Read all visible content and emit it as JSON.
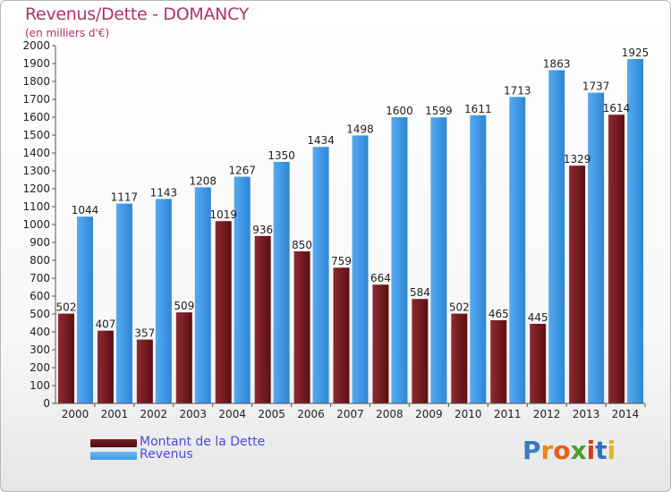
{
  "chart_data": {
    "type": "bar",
    "title": "Revenus/Dette - DOMANCY",
    "subtitle": "(en milliers d'€)",
    "categories": [
      "2000",
      "2001",
      "2002",
      "2003",
      "2004",
      "2005",
      "2006",
      "2007",
      "2008",
      "2009",
      "2010",
      "2011",
      "2012",
      "2013",
      "2014"
    ],
    "series": [
      {
        "name": "Montant de la Dette",
        "color": "#7a1f24",
        "values": [
          502,
          407,
          357,
          509,
          1019,
          936,
          850,
          759,
          664,
          584,
          502,
          465,
          445,
          1329,
          1614
        ]
      },
      {
        "name": "Revenus",
        "color": "#3d9be6",
        "values": [
          1044,
          1117,
          1143,
          1208,
          1267,
          1350,
          1434,
          1498,
          1600,
          1599,
          1611,
          1713,
          1863,
          1737,
          1925
        ]
      }
    ],
    "ylim": [
      0,
      2000
    ],
    "ytick_step": 100,
    "grid": false,
    "legend": "bottom-left"
  },
  "logo": {
    "letters": [
      {
        "ch": "P",
        "color": "#3a78c8"
      },
      {
        "ch": "r",
        "color": "#e88a1a"
      },
      {
        "ch": "o",
        "color": "#e85c1a"
      },
      {
        "ch": "x",
        "color": "#4aa02c"
      },
      {
        "ch": "i",
        "color": "#d63a1e"
      },
      {
        "ch": "t",
        "color": "#2f6fc0"
      },
      {
        "ch": "i",
        "color": "#e8b21a"
      }
    ]
  }
}
